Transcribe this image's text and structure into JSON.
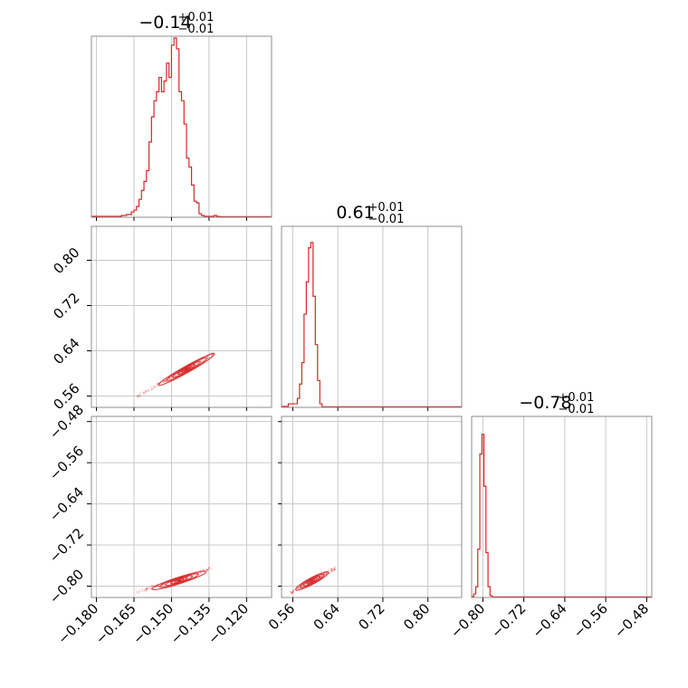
{
  "chart_data": {
    "type": "corner",
    "colors": {
      "line": "#d62728",
      "grid": "#c8c8c8",
      "frame": "#8c8c8c"
    },
    "parameters": [
      {
        "title": {
          "median": "−0.14",
          "plus": "+0.01",
          "minus": "−0.01"
        },
        "range": [
          -0.182,
          -0.11
        ],
        "ticks": [
          -0.18,
          -0.165,
          -0.15,
          -0.135,
          -0.12
        ],
        "tick_labels": [
          "−0.180",
          "−0.165",
          "−0.150",
          "−0.135",
          "−0.120"
        ]
      },
      {
        "title": {
          "median": "0.61",
          "plus": "+0.01",
          "minus": "−0.01"
        },
        "range": [
          0.54,
          0.86
        ],
        "ticks": [
          0.56,
          0.64,
          0.72,
          0.8
        ],
        "tick_labels": [
          "0.56",
          "0.64",
          "0.72",
          "0.80"
        ]
      },
      {
        "title": {
          "median": "−0.78",
          "plus": "+0.01",
          "minus": "−0.01"
        },
        "range": [
          -0.822,
          -0.47
        ],
        "ticks": [
          -0.8,
          -0.72,
          -0.64,
          -0.56,
          -0.48
        ],
        "tick_labels": [
          "−0.80",
          "−0.72",
          "−0.64",
          "−0.56",
          "−0.48"
        ]
      }
    ],
    "histograms": [
      {
        "param": 0,
        "bins": [
          [
            -0.182,
            0.5
          ],
          [
            -0.17,
            1
          ],
          [
            -0.168,
            1.5
          ],
          [
            -0.166,
            3
          ],
          [
            -0.165,
            4
          ],
          [
            -0.164,
            6
          ],
          [
            -0.163,
            10
          ],
          [
            -0.162,
            15
          ],
          [
            -0.161,
            20
          ],
          [
            -0.16,
            26
          ],
          [
            -0.159,
            42
          ],
          [
            -0.158,
            56
          ],
          [
            -0.157,
            65
          ],
          [
            -0.156,
            70
          ],
          [
            -0.155,
            78
          ],
          [
            -0.154,
            70
          ],
          [
            -0.153,
            76
          ],
          [
            -0.152,
            86
          ],
          [
            -0.151,
            78
          ],
          [
            -0.15,
            96
          ],
          [
            -0.149,
            100
          ],
          [
            -0.148,
            94
          ],
          [
            -0.147,
            70
          ],
          [
            -0.146,
            65
          ],
          [
            -0.145,
            52
          ],
          [
            -0.144,
            33
          ],
          [
            -0.143,
            28
          ],
          [
            -0.142,
            18
          ],
          [
            -0.141,
            9
          ],
          [
            -0.14,
            8
          ],
          [
            -0.139,
            2
          ],
          [
            -0.138,
            1
          ],
          [
            -0.137,
            0.5
          ],
          [
            -0.136,
            0.5
          ],
          [
            -0.133,
            1
          ],
          [
            -0.132,
            0.5
          ],
          [
            -0.131,
            0.3
          ]
        ],
        "bin_end": -0.11
      },
      {
        "param": 1,
        "bins": [
          [
            0.54,
            0.5
          ],
          [
            0.548,
            0.5
          ],
          [
            0.552,
            2
          ],
          [
            0.568,
            5
          ],
          [
            0.572,
            13
          ],
          [
            0.576,
            25
          ],
          [
            0.58,
            52
          ],
          [
            0.584,
            70
          ],
          [
            0.588,
            89
          ],
          [
            0.592,
            92
          ],
          [
            0.596,
            62
          ],
          [
            0.6,
            35
          ],
          [
            0.604,
            15
          ],
          [
            0.608,
            2
          ],
          [
            0.612,
            0.3
          ]
        ],
        "bin_end": 0.86
      },
      {
        "param": 2,
        "bins": [
          [
            -0.822,
            0.5
          ],
          [
            -0.818,
            2
          ],
          [
            -0.814,
            6
          ],
          [
            -0.81,
            27
          ],
          [
            -0.806,
            80
          ],
          [
            -0.802,
            91
          ],
          [
            -0.798,
            62
          ],
          [
            -0.794,
            25
          ],
          [
            -0.79,
            6
          ],
          [
            -0.786,
            1
          ],
          [
            -0.782,
            0.3
          ]
        ],
        "bin_end": -0.47
      }
    ],
    "scatter_2d": [
      {
        "x_param": 0,
        "y_param": 1,
        "start": [
          -0.164,
          0.559
        ],
        "end": [
          -0.133,
          0.636
        ],
        "core": [
          -0.144,
          0.607
        ]
      },
      {
        "x_param": 0,
        "y_param": 2,
        "start": [
          -0.164,
          -0.812
        ],
        "end": [
          -0.134,
          -0.765
        ],
        "core": [
          -0.147,
          -0.789
        ]
      },
      {
        "x_param": 1,
        "y_param": 2,
        "start": [
          0.556,
          -0.812
        ],
        "end": [
          0.636,
          -0.765
        ],
        "core": [
          0.594,
          -0.79
        ]
      }
    ]
  }
}
